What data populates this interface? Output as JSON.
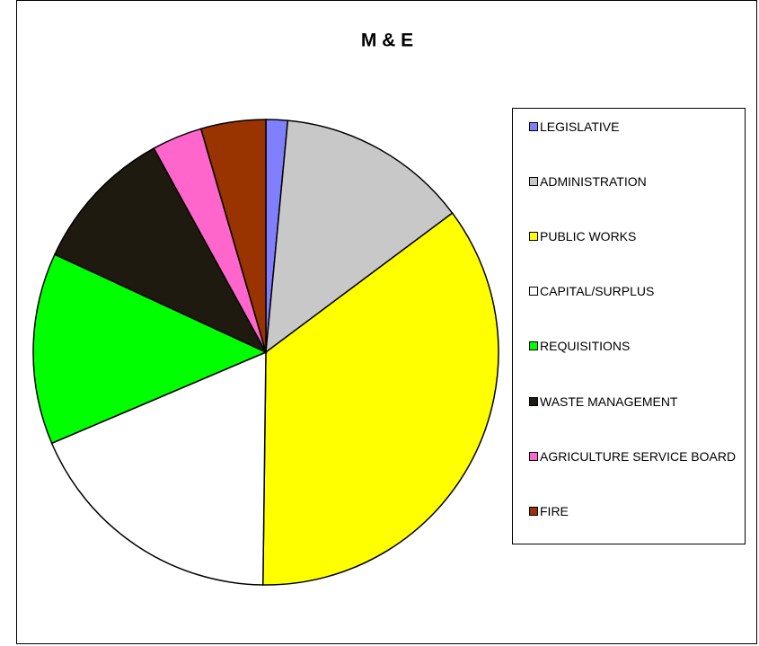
{
  "chart_data": {
    "type": "pie",
    "title": "M & E",
    "categories": [
      "LEGISLATIVE",
      "ADMINISTRATION",
      "PUBLIC WORKS",
      "CAPITAL/SURPLUS",
      "REQUISITIONS",
      "WASTE MANAGEMENT",
      "AGRICULTURE SERVICE BOARD",
      "FIRE"
    ],
    "values": [
      1.5,
      13.3,
      35.4,
      18.4,
      13.3,
      10.1,
      3.5,
      4.5
    ],
    "colors": [
      "#8080ff",
      "#c8c8c8",
      "#ffff00",
      "#ffffff",
      "#00ff00",
      "#1f1a0f",
      "#ff66cc",
      "#993300"
    ],
    "legend": "right"
  }
}
